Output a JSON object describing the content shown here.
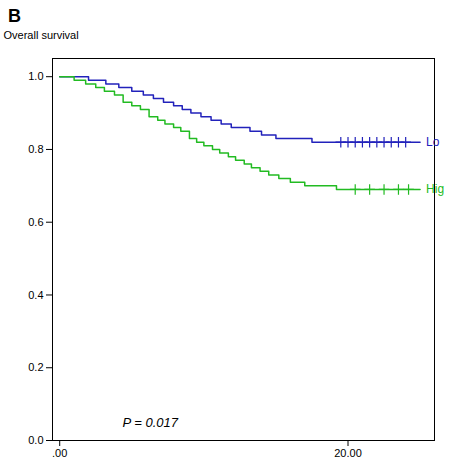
{
  "chart_data": {
    "type": "step",
    "title": "B",
    "ylabel": "Overall survival",
    "annotation": "P = 0.017",
    "xlim": [
      -0.5,
      26
    ],
    "ylim": [
      0.0,
      1.05
    ],
    "xticks": [
      {
        "value": 0,
        "label": ".00"
      },
      {
        "value": 20,
        "label": "20.00"
      }
    ],
    "yticks": [
      {
        "value": 0.0,
        "label": "0.0"
      },
      0.2,
      0.4,
      0.6,
      0.8,
      {
        "value": 1.0,
        "label": "1.0"
      }
    ],
    "grid": false,
    "series": [
      {
        "name": "Lo",
        "color": "#2222bb",
        "marker": "plus",
        "x": [
          0,
          2.0,
          3.2,
          4.1,
          5.0,
          5.8,
          6.5,
          7.2,
          7.9,
          8.5,
          9.1,
          9.8,
          10.5,
          11.2,
          11.9,
          12.5,
          13.2,
          14.0,
          15.0,
          16.2,
          17.5,
          19.0,
          25
        ],
        "values": [
          1.0,
          0.99,
          0.98,
          0.97,
          0.96,
          0.95,
          0.94,
          0.93,
          0.92,
          0.91,
          0.9,
          0.89,
          0.88,
          0.87,
          0.86,
          0.86,
          0.85,
          0.84,
          0.83,
          0.83,
          0.82,
          0.82,
          0.82
        ],
        "censored_x": [
          19.5,
          20.0,
          20.5,
          21.0,
          21.5,
          22.0,
          22.5,
          23.0,
          23.5,
          24.0
        ],
        "censored_y": [
          0.82,
          0.82,
          0.82,
          0.82,
          0.82,
          0.82,
          0.82,
          0.82,
          0.82,
          0.82
        ]
      },
      {
        "name": "Hig",
        "color": "#22bb22",
        "marker": "plus",
        "x": [
          0,
          1.0,
          1.8,
          2.5,
          3.1,
          3.8,
          4.4,
          5.0,
          5.6,
          6.2,
          6.8,
          7.3,
          7.9,
          8.4,
          9.0,
          9.5,
          10.0,
          10.6,
          11.1,
          11.7,
          12.2,
          12.8,
          13.3,
          13.9,
          14.5,
          15.2,
          16.0,
          17.0,
          18.0,
          19.2,
          20.5,
          22.0,
          24.0,
          25
        ],
        "values": [
          1.0,
          0.99,
          0.98,
          0.97,
          0.96,
          0.95,
          0.93,
          0.92,
          0.91,
          0.89,
          0.88,
          0.87,
          0.86,
          0.85,
          0.83,
          0.82,
          0.81,
          0.8,
          0.79,
          0.78,
          0.77,
          0.76,
          0.75,
          0.74,
          0.73,
          0.72,
          0.71,
          0.7,
          0.7,
          0.69,
          0.69,
          0.69,
          0.69,
          0.69
        ],
        "censored_x": [
          20.5,
          21.5,
          22.5,
          23.5,
          24.2
        ],
        "censored_y": [
          0.69,
          0.69,
          0.69,
          0.69,
          0.69
        ]
      }
    ]
  }
}
